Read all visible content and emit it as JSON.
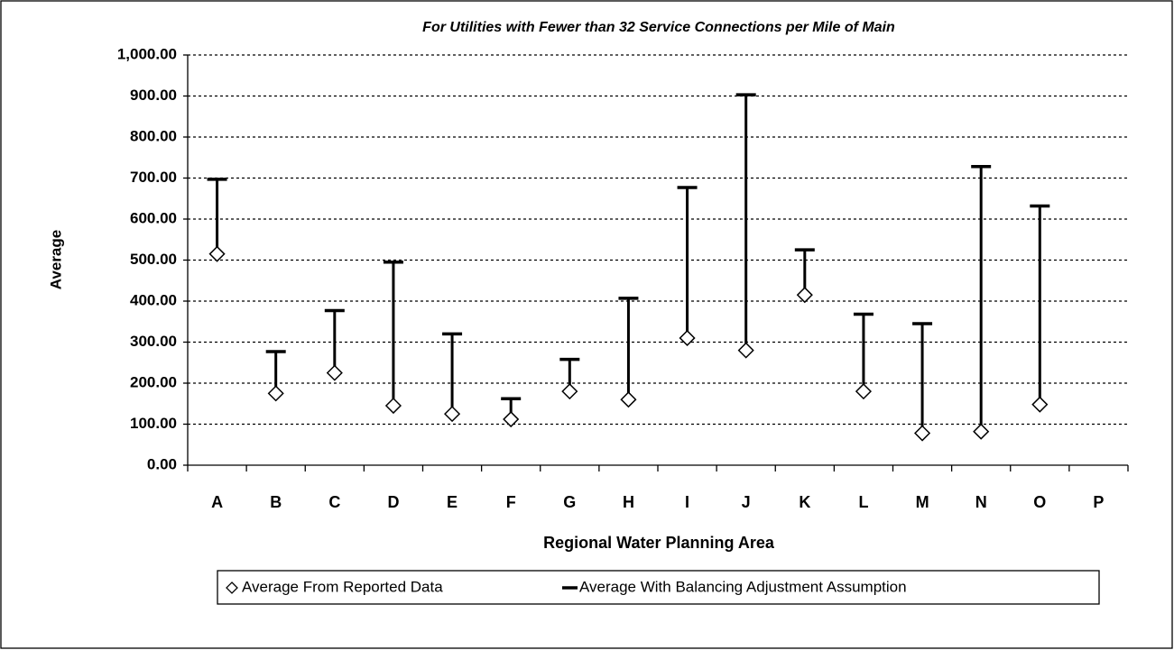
{
  "chart_data": {
    "type": "range",
    "title": "For Utilities with Fewer than 32 Service Connections per Mile of Main",
    "y_label": "Average",
    "x_label": "Regional Water Planning Area",
    "categories": [
      "A",
      "B",
      "C",
      "D",
      "E",
      "F",
      "G",
      "H",
      "I",
      "J",
      "K",
      "L",
      "M",
      "N",
      "O",
      "P"
    ],
    "series": [
      {
        "name": "Average From Reported Data",
        "color": "#000000",
        "marker": "diamond",
        "values": [
          515,
          175,
          225,
          145,
          125,
          112,
          180,
          160,
          310,
          280,
          415,
          180,
          78,
          82,
          148,
          null
        ]
      },
      {
        "name": "Average With Balancing Adjustment Assumption",
        "color": "#000000",
        "marker": "dash",
        "values": [
          697,
          277,
          377,
          495,
          320,
          162,
          258,
          407,
          677,
          903,
          525,
          368,
          345,
          728,
          632,
          null
        ]
      }
    ],
    "ylim": [
      0,
      1000
    ],
    "yticks": [
      {
        "value": 0,
        "label": "0.00"
      },
      {
        "value": 100,
        "label": "100.00"
      },
      {
        "value": 200,
        "label": "200.00"
      },
      {
        "value": 300,
        "label": "300.00"
      },
      {
        "value": 400,
        "label": "400.00"
      },
      {
        "value": 500,
        "label": "500.00"
      },
      {
        "value": 600,
        "label": "600.00"
      },
      {
        "value": 700,
        "label": "700.00"
      },
      {
        "value": 800,
        "label": "800.00"
      },
      {
        "value": 900,
        "label": "900.00"
      },
      {
        "value": 1000,
        "label": "1,000.00"
      }
    ],
    "grid": true
  }
}
